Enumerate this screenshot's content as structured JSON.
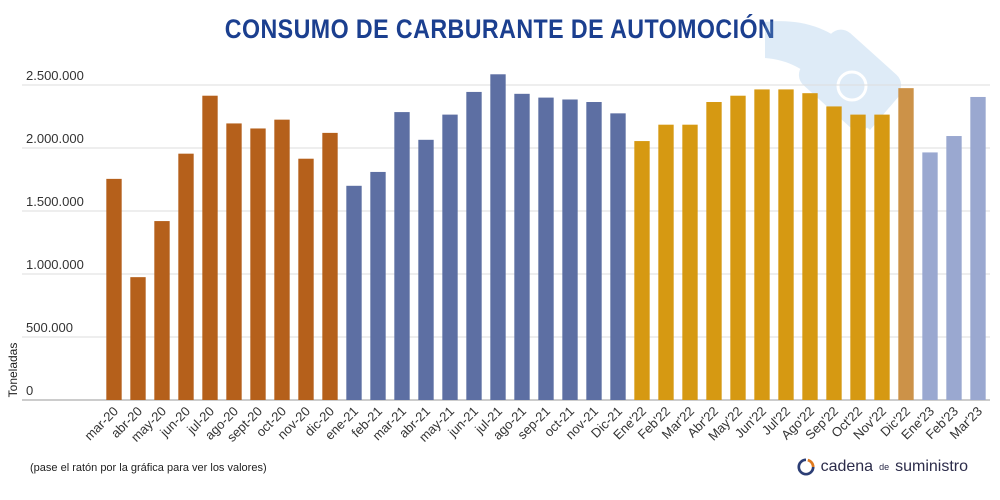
{
  "chart_data": {
    "type": "bar",
    "title": "CONSUMO DE CARBURANTE DE AUTOMOCIÓN",
    "ylabel": "Toneladas",
    "xlabel": "",
    "ylim": [
      0,
      2500000
    ],
    "yticks": [
      {
        "value": 0,
        "label": "0"
      },
      {
        "value": 500000,
        "label": "500.000"
      },
      {
        "value": 1000000,
        "label": "1.000.000"
      },
      {
        "value": 1500000,
        "label": "1.500.000"
      },
      {
        "value": 2000000,
        "label": "2.000.000"
      },
      {
        "value": 2500000,
        "label": "2.500.000"
      }
    ],
    "grid": true,
    "categories": [
      "mar-20",
      "abr-20",
      "may-20",
      "jun-20",
      "jul-20",
      "ago-20",
      "sept-20",
      "oct-20",
      "nov-20",
      "dic-20",
      "ene-21",
      "feb-21",
      "mar-21",
      "abr-21",
      "may-21",
      "jun-21",
      "jul-21",
      "ago-21",
      "sep-21",
      "oct-21",
      "nov-21",
      "Dic-21",
      "Ene'22",
      "Feb'22",
      "Mar'22",
      "Abr'22",
      "May'22",
      "Jun'22",
      "Jul'22",
      "Ago'22",
      "Sep'22",
      "Oct'22",
      "Nov'22",
      "Dic'22",
      "Ene'23",
      "Feb'23",
      "Mar'23"
    ],
    "values": [
      1755000,
      975000,
      1420000,
      1955000,
      2415000,
      2195000,
      2155000,
      2225000,
      1915000,
      2120000,
      1700000,
      1810000,
      2285000,
      2065000,
      2265000,
      2445000,
      2585000,
      2430000,
      2400000,
      2385000,
      2365000,
      2275000,
      2055000,
      2185000,
      2185000,
      2365000,
      2415000,
      2465000,
      2465000,
      2435000,
      2330000,
      2265000,
      2265000,
      2475000,
      1965000,
      2095000,
      2405000
    ],
    "colors": [
      "#b5601b",
      "#b5601b",
      "#b5601b",
      "#b5601b",
      "#b5601b",
      "#b5601b",
      "#b5601b",
      "#b5601b",
      "#b5601b",
      "#b5601b",
      "#5d6fa3",
      "#5d6fa3",
      "#5d6fa3",
      "#5d6fa3",
      "#5d6fa3",
      "#5d6fa3",
      "#5d6fa3",
      "#5d6fa3",
      "#5d6fa3",
      "#5d6fa3",
      "#5d6fa3",
      "#5d6fa3",
      "#d69912",
      "#d69912",
      "#d69912",
      "#d69912",
      "#d69912",
      "#d69912",
      "#d69912",
      "#d69912",
      "#d69912",
      "#d69912",
      "#d69912",
      "#cc9248",
      "#9aa8d0",
      "#9aa8d0",
      "#9aa8d0"
    ]
  },
  "footer": {
    "hint": "(pase el ratón por la gráfica para ver los valores)",
    "brand_main": "cadena",
    "brand_small": "de",
    "brand_end": "suministro"
  },
  "icons": {
    "watermark": "fuel-pump-watermark-icon",
    "logo": "cadena-logo-icon"
  }
}
